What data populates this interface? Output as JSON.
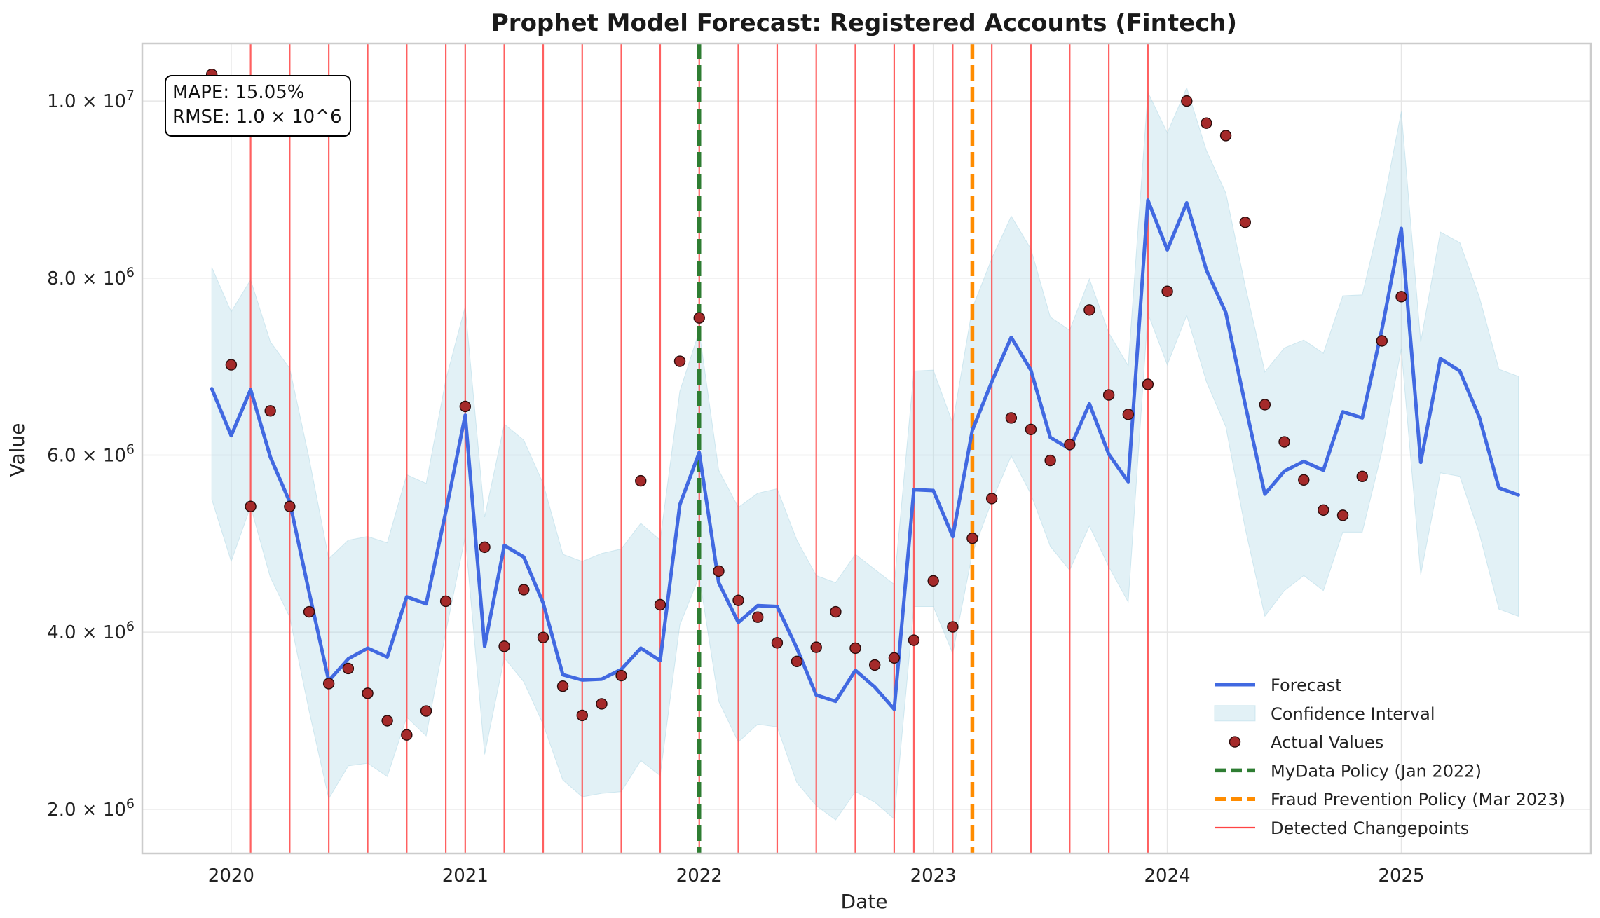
{
  "chart_data": {
    "type": "line",
    "title": "Prophet Model Forecast: Registered Accounts (Fintech)",
    "xlabel": "Date",
    "ylabel": "Value",
    "xlim": [
      2019.62,
      2025.81
    ],
    "ylim": [
      1500000,
      10650000
    ],
    "x_ticks": [
      {
        "value": 2020.0,
        "label": "2020"
      },
      {
        "value": 2021.0,
        "label": "2021"
      },
      {
        "value": 2022.0,
        "label": "2022"
      },
      {
        "value": 2023.0,
        "label": "2023"
      },
      {
        "value": 2024.0,
        "label": "2024"
      },
      {
        "value": 2025.0,
        "label": "2025"
      }
    ],
    "y_ticks": [
      {
        "value": 2000000,
        "mantissa": "2.0 × 10",
        "exp": "6"
      },
      {
        "value": 4000000,
        "mantissa": "4.0 × 10",
        "exp": "6"
      },
      {
        "value": 6000000,
        "mantissa": "6.0 × 10",
        "exp": "6"
      },
      {
        "value": 8000000,
        "mantissa": "8.0 × 10",
        "exp": "6"
      },
      {
        "value": 10000000,
        "mantissa": "1.0 × 10",
        "exp": "7"
      }
    ],
    "grid": true,
    "metrics": {
      "mape": "MAPE: 15.05%",
      "rmse": "RMSE: 1.0 × 10^6"
    },
    "series": [
      {
        "name": "Forecast",
        "color": "#4169E1",
        "x": [
          2019.917,
          2020.0,
          2020.083,
          2020.167,
          2020.25,
          2020.333,
          2020.417,
          2020.5,
          2020.583,
          2020.667,
          2020.75,
          2020.833,
          2020.917,
          2021.0,
          2021.083,
          2021.167,
          2021.25,
          2021.333,
          2021.417,
          2021.5,
          2021.583,
          2021.667,
          2021.75,
          2021.833,
          2021.917,
          2022.0,
          2022.083,
          2022.167,
          2022.25,
          2022.333,
          2022.417,
          2022.5,
          2022.583,
          2022.667,
          2022.75,
          2022.833,
          2022.917,
          2023.0,
          2023.083,
          2023.167,
          2023.25,
          2023.333,
          2023.417,
          2023.5,
          2023.583,
          2023.667,
          2023.75,
          2023.833,
          2023.917,
          2024.0,
          2024.083,
          2024.167,
          2024.25,
          2024.333,
          2024.417,
          2024.5,
          2024.583,
          2024.667,
          2024.75,
          2024.833,
          2024.917,
          2025.0,
          2025.083,
          2025.167,
          2025.25,
          2025.333,
          2025.417,
          2025.5
        ],
        "y": [
          6750000,
          6220000,
          6740000,
          5980000,
          5470000,
          4450000,
          3450000,
          3700000,
          3820000,
          3720000,
          4400000,
          4320000,
          5360000,
          6450000,
          3840000,
          4980000,
          4850000,
          4330000,
          3520000,
          3460000,
          3470000,
          3580000,
          3820000,
          3680000,
          5440000,
          6030000,
          4560000,
          4110000,
          4300000,
          4290000,
          3820000,
          3290000,
          3220000,
          3570000,
          3380000,
          3130000,
          5610000,
          5600000,
          5080000,
          6280000,
          6830000,
          7330000,
          6960000,
          6200000,
          6070000,
          6580000,
          6010000,
          5700000,
          8880000,
          8320000,
          8850000,
          8090000,
          7610000,
          6570000,
          5560000,
          5820000,
          5930000,
          5830000,
          6490000,
          6420000,
          7420000,
          8560000,
          5920000,
          7090000,
          6950000,
          6430000,
          5630000,
          5550000
        ]
      },
      {
        "name": "Confidence Interval",
        "color": "#ADD8E6",
        "x": [
          2019.917,
          2020.0,
          2020.083,
          2020.167,
          2020.25,
          2020.333,
          2020.417,
          2020.5,
          2020.583,
          2020.667,
          2020.75,
          2020.833,
          2020.917,
          2021.0,
          2021.083,
          2021.167,
          2021.25,
          2021.333,
          2021.417,
          2021.5,
          2021.583,
          2021.667,
          2021.75,
          2021.833,
          2021.917,
          2022.0,
          2022.083,
          2022.167,
          2022.25,
          2022.333,
          2022.417,
          2022.5,
          2022.583,
          2022.667,
          2022.75,
          2022.833,
          2022.917,
          2023.0,
          2023.083,
          2023.167,
          2023.25,
          2023.333,
          2023.417,
          2023.5,
          2023.583,
          2023.667,
          2023.75,
          2023.833,
          2023.917,
          2024.0,
          2024.083,
          2024.167,
          2024.25,
          2024.333,
          2024.417,
          2024.5,
          2024.583,
          2024.667,
          2024.75,
          2024.833,
          2024.917,
          2025.0,
          2025.083,
          2025.167,
          2025.25,
          2025.333,
          2025.417,
          2025.5
        ],
        "upper": [
          8120000,
          7620000,
          7980000,
          7280000,
          6980000,
          5960000,
          4830000,
          5040000,
          5080000,
          5010000,
          5780000,
          5680000,
          6850000,
          7680000,
          5300000,
          6350000,
          6170000,
          5680000,
          4880000,
          4800000,
          4890000,
          4940000,
          5230000,
          5040000,
          6720000,
          7400000,
          5830000,
          5410000,
          5570000,
          5620000,
          5040000,
          4640000,
          4560000,
          4880000,
          4710000,
          4540000,
          6950000,
          6960000,
          6360000,
          7660000,
          8220000,
          8700000,
          8330000,
          7560000,
          7410000,
          7990000,
          7380000,
          7010000,
          10100000,
          9640000,
          10150000,
          9440000,
          8960000,
          7910000,
          6940000,
          7210000,
          7300000,
          7150000,
          7800000,
          7810000,
          8750000,
          9880000,
          7280000,
          8520000,
          8400000,
          7790000,
          6970000,
          6890000
        ],
        "lower": [
          5500000,
          4800000,
          5420000,
          4620000,
          4170000,
          3110000,
          2120000,
          2490000,
          2520000,
          2370000,
          3040000,
          2830000,
          4000000,
          5080000,
          2620000,
          3710000,
          3440000,
          2960000,
          2330000,
          2140000,
          2180000,
          2200000,
          2550000,
          2380000,
          4080000,
          4630000,
          3220000,
          2760000,
          2960000,
          2930000,
          2300000,
          2040000,
          1880000,
          2200000,
          2080000,
          1890000,
          4290000,
          4290000,
          3760000,
          4890000,
          5480000,
          5990000,
          5560000,
          4970000,
          4700000,
          5200000,
          4740000,
          4340000,
          7600000,
          7020000,
          7580000,
          6830000,
          6320000,
          5170000,
          4180000,
          4470000,
          4640000,
          4470000,
          5130000,
          5130000,
          6040000,
          7200000,
          4650000,
          5800000,
          5760000,
          5120000,
          4260000,
          4180000
        ]
      },
      {
        "name": "Actual Values",
        "color": "#A52A2A",
        "x": [
          2019.917,
          2020.0,
          2020.083,
          2020.167,
          2020.25,
          2020.333,
          2020.417,
          2020.5,
          2020.583,
          2020.667,
          2020.75,
          2020.833,
          2020.917,
          2021.0,
          2021.083,
          2021.167,
          2021.25,
          2021.333,
          2021.417,
          2021.5,
          2021.583,
          2021.667,
          2021.75,
          2021.833,
          2021.917,
          2022.0,
          2022.083,
          2022.167,
          2022.25,
          2022.333,
          2022.417,
          2022.5,
          2022.583,
          2022.667,
          2022.75,
          2022.833,
          2022.917,
          2023.0,
          2023.083,
          2023.167,
          2023.25,
          2023.333,
          2023.417,
          2023.5,
          2023.583,
          2023.667,
          2023.75,
          2023.833,
          2023.917,
          2024.0,
          2024.083,
          2024.167,
          2024.25,
          2024.333,
          2024.417,
          2024.5,
          2024.583,
          2024.667,
          2024.75,
          2024.833,
          2024.917,
          2025.0
        ],
        "y": [
          10300000,
          7020000,
          5420000,
          6500000,
          5420000,
          4230000,
          3420000,
          3590000,
          3310000,
          3000000,
          2840000,
          3110000,
          4350000,
          6550000,
          4960000,
          3840000,
          4480000,
          3940000,
          3390000,
          3060000,
          3190000,
          3510000,
          5710000,
          4310000,
          7060000,
          7550000,
          4690000,
          4360000,
          4170000,
          3880000,
          3670000,
          3830000,
          4230000,
          3820000,
          3630000,
          3710000,
          3910000,
          4580000,
          4060000,
          5060000,
          5510000,
          6420000,
          6290000,
          5940000,
          6120000,
          7640000,
          6680000,
          6460000,
          6800000,
          7850000,
          10000000,
          9750000,
          9610000,
          8630000,
          6570000,
          6150000,
          5720000,
          5380000,
          5320000,
          5760000,
          7290000,
          7790000
        ]
      }
    ],
    "changepoints": [
      2020.083,
      2020.25,
      2020.417,
      2020.583,
      2020.75,
      2020.917,
      2021.0,
      2021.167,
      2021.333,
      2021.5,
      2021.667,
      2021.833,
      2022.0,
      2022.167,
      2022.333,
      2022.5,
      2022.667,
      2022.833,
      2022.917,
      2023.083,
      2023.25,
      2023.417,
      2023.583,
      2023.75,
      2023.917
    ],
    "policies": [
      {
        "name": "MyData Policy (Jan 2022)",
        "x": 2022.0,
        "color": "#2E7D32"
      },
      {
        "name": "Fraud Prevention Policy (Mar 2023)",
        "x": 2023.167,
        "color": "#FF8C00"
      }
    ],
    "legend": {
      "position": "lower right",
      "entries": [
        {
          "label": "Forecast",
          "kind": "line",
          "color": "#4169E1"
        },
        {
          "label": "Confidence Interval",
          "kind": "patch",
          "color": "#ADD8E6"
        },
        {
          "label": "Actual Values",
          "kind": "marker",
          "color": "#A52A2A"
        },
        {
          "label": "MyData Policy (Jan 2022)",
          "kind": "dash",
          "color": "#2E7D32"
        },
        {
          "label": "Fraud Prevention Policy (Mar 2023)",
          "kind": "dash",
          "color": "#FF8C00"
        },
        {
          "label": "Detected Changepoints",
          "kind": "thin",
          "color": "#FF4444"
        }
      ]
    }
  }
}
